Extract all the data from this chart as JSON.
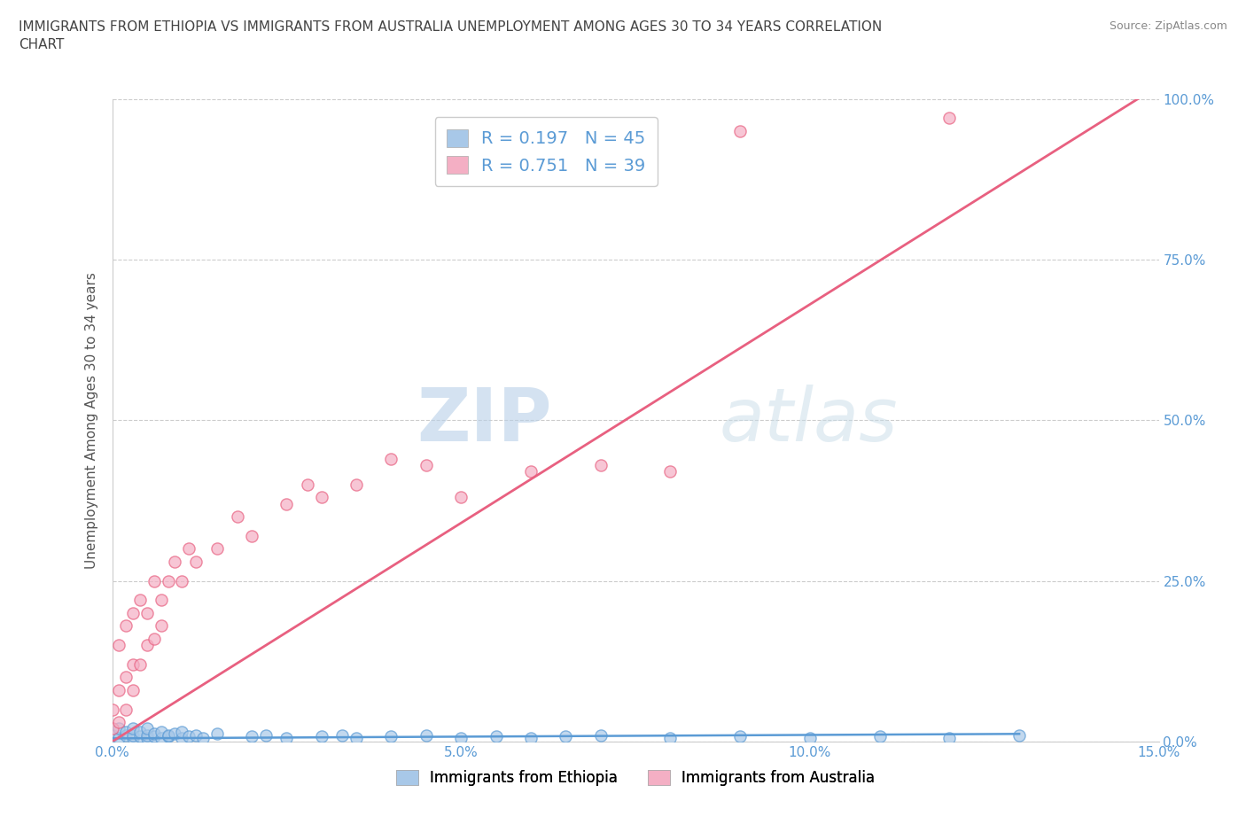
{
  "title": "IMMIGRANTS FROM ETHIOPIA VS IMMIGRANTS FROM AUSTRALIA UNEMPLOYMENT AMONG AGES 30 TO 34 YEARS CORRELATION\nCHART",
  "source": "Source: ZipAtlas.com",
  "ylabel": "Unemployment Among Ages 30 to 34 years",
  "xlim": [
    0.0,
    0.15
  ],
  "ylim": [
    0.0,
    1.0
  ],
  "xticks": [
    0.0,
    0.05,
    0.1,
    0.15
  ],
  "xtick_labels": [
    "0.0%",
    "5.0%",
    "10.0%",
    "15.0%"
  ],
  "yticks": [
    0.0,
    0.25,
    0.5,
    0.75,
    1.0
  ],
  "ytick_labels": [
    "0.0%",
    "25.0%",
    "50.0%",
    "75.0%",
    "100.0%"
  ],
  "series1_color": "#a8c8e8",
  "series2_color": "#f4afc4",
  "line1_color": "#5b9bd5",
  "line2_color": "#e86080",
  "r1": 0.197,
  "n1": 45,
  "r2": 0.751,
  "n2": 39,
  "legend_label1": "Immigrants from Ethiopia",
  "legend_label2": "Immigrants from Australia",
  "watermark_zip": "ZIP",
  "watermark_atlas": "atlas",
  "background_color": "#ffffff",
  "grid_color": "#cccccc",
  "ethiopia_x": [
    0.0,
    0.001,
    0.001,
    0.002,
    0.002,
    0.003,
    0.003,
    0.003,
    0.004,
    0.004,
    0.005,
    0.005,
    0.005,
    0.006,
    0.006,
    0.007,
    0.007,
    0.008,
    0.008,
    0.009,
    0.01,
    0.01,
    0.011,
    0.012,
    0.013,
    0.015,
    0.02,
    0.022,
    0.025,
    0.03,
    0.033,
    0.035,
    0.04,
    0.045,
    0.05,
    0.055,
    0.06,
    0.065,
    0.07,
    0.08,
    0.09,
    0.1,
    0.11,
    0.12,
    0.13
  ],
  "ethiopia_y": [
    0.01,
    0.005,
    0.02,
    0.01,
    0.015,
    0.005,
    0.01,
    0.02,
    0.008,
    0.015,
    0.005,
    0.01,
    0.02,
    0.008,
    0.012,
    0.005,
    0.015,
    0.008,
    0.01,
    0.012,
    0.005,
    0.015,
    0.008,
    0.01,
    0.005,
    0.012,
    0.008,
    0.01,
    0.005,
    0.008,
    0.01,
    0.005,
    0.008,
    0.01,
    0.005,
    0.008,
    0.005,
    0.008,
    0.01,
    0.005,
    0.008,
    0.005,
    0.008,
    0.005,
    0.01
  ],
  "australia_x": [
    0.0,
    0.0,
    0.001,
    0.001,
    0.001,
    0.002,
    0.002,
    0.002,
    0.003,
    0.003,
    0.003,
    0.004,
    0.004,
    0.005,
    0.005,
    0.006,
    0.006,
    0.007,
    0.007,
    0.008,
    0.009,
    0.01,
    0.011,
    0.012,
    0.015,
    0.018,
    0.02,
    0.025,
    0.028,
    0.03,
    0.035,
    0.04,
    0.045,
    0.05,
    0.06,
    0.07,
    0.08,
    0.09,
    0.12
  ],
  "australia_y": [
    0.02,
    0.05,
    0.03,
    0.08,
    0.15,
    0.05,
    0.1,
    0.18,
    0.08,
    0.12,
    0.2,
    0.12,
    0.22,
    0.15,
    0.2,
    0.16,
    0.25,
    0.18,
    0.22,
    0.25,
    0.28,
    0.25,
    0.3,
    0.28,
    0.3,
    0.35,
    0.32,
    0.37,
    0.4,
    0.38,
    0.4,
    0.44,
    0.43,
    0.38,
    0.42,
    0.43,
    0.42,
    0.95,
    0.97
  ],
  "aus_line_x": [
    0.0,
    0.147
  ],
  "aus_line_y": [
    0.0,
    1.0
  ],
  "eth_line_x": [
    0.0,
    0.13
  ],
  "eth_line_y": [
    0.005,
    0.012
  ]
}
